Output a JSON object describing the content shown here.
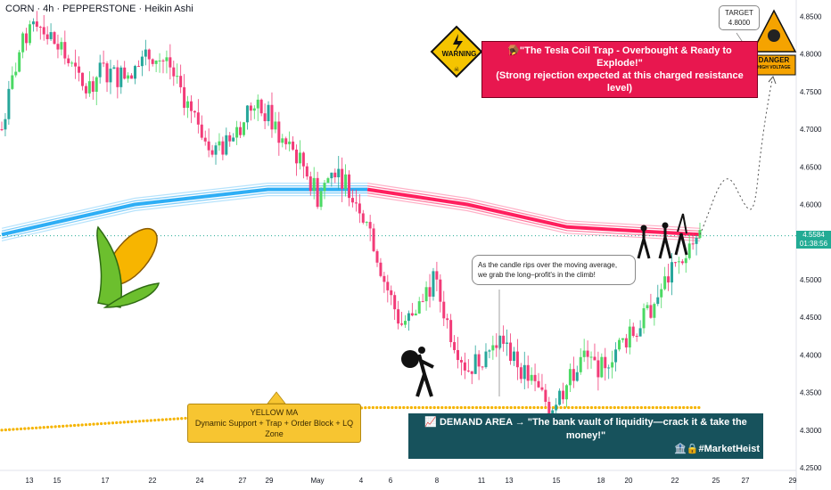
{
  "header": {
    "title": "CORN · 4h · PEPPERSTONE · Heikin Ashi"
  },
  "colors": {
    "bull": "#26a69a",
    "bull_light": "#4cd964",
    "bear": "#f23b78",
    "ma_blue": "#2eaef5",
    "ma_pink": "#ff1f5e",
    "yellow_ma": "#f5b400",
    "price_line": "#22ab94",
    "demand_bg": "#17525c",
    "resistance_bg": "#e8174f"
  },
  "price_axis": {
    "labels": [
      "4.8500",
      "4.8000",
      "4.7500",
      "4.7000",
      "4.6500",
      "4.6000",
      "4.5500",
      "4.5000",
      "4.4500",
      "4.4000",
      "4.3500",
      "4.3000",
      "4.2500"
    ]
  },
  "current_price": {
    "value": "4.5584",
    "countdown": "01:38:56"
  },
  "date_axis": {
    "labels": [
      "13",
      "15",
      "17",
      "22",
      "24",
      "27",
      "29",
      "May",
      "4",
      "6",
      "8",
      "11",
      "13",
      "15",
      "18",
      "20",
      "22",
      "25",
      "27",
      "29"
    ]
  },
  "annotations": {
    "resistance": {
      "line1": "🪤\"The Tesla Coil Trap - Overbought & Ready to Explode!\"",
      "line2": "(Strong rejection expected at this charged resistance level)"
    },
    "demand": {
      "line1": "📈 DEMAND AREA → \"The bank vault of liquidity—crack it & take the money!\"",
      "line2": "🏦🔒#MarketHeist"
    },
    "yellow_ma": {
      "line1": "YELLOW MA",
      "line2": "Dynamic Support + Trap + Order Block + LQ Zone"
    },
    "candle_note": {
      "line1": "As the candle rips over the moving average,",
      "line2": "we grab the long–profit's in the climb!"
    },
    "target": {
      "line1": "TARGET",
      "line2": "4.8000"
    },
    "warning_sign": "WARNING",
    "danger_sign": {
      "line1": "DANGER",
      "line2": "HIGH VOLTAGE"
    }
  },
  "icons": [
    "corn-icon",
    "thief-with-bag-icon",
    "robbers-icon",
    "warning-sign-icon",
    "danger-sign-icon"
  ],
  "chart_data": {
    "type": "candlestick",
    "title": "CORN · 4h · PEPPERSTONE · Heikin Ashi",
    "ylim": [
      4.25,
      4.86
    ],
    "x_categories": [
      "13",
      "15",
      "17",
      "22",
      "24",
      "27",
      "29",
      "May",
      "4",
      "6",
      "8",
      "11",
      "13",
      "15",
      "18",
      "20",
      "22",
      "25",
      "27",
      "29"
    ],
    "current_price": 4.5584,
    "target": 4.8,
    "close_path": [
      [
        0,
        4.7
      ],
      [
        1,
        4.8
      ],
      [
        2,
        4.85
      ],
      [
        3,
        4.82
      ],
      [
        4,
        4.79
      ],
      [
        5,
        4.75
      ],
      [
        6,
        4.78
      ],
      [
        7,
        4.77
      ],
      [
        8,
        4.78
      ],
      [
        9,
        4.8
      ],
      [
        10,
        4.79
      ],
      [
        11,
        4.74
      ],
      [
        12,
        4.7
      ],
      [
        13,
        4.67
      ],
      [
        14,
        4.69
      ],
      [
        15,
        4.73
      ],
      [
        16,
        4.72
      ],
      [
        17,
        4.68
      ],
      [
        18,
        4.66
      ],
      [
        19,
        4.61
      ],
      [
        20,
        4.65
      ],
      [
        21,
        4.62
      ],
      [
        22,
        4.58
      ],
      [
        23,
        4.5
      ],
      [
        24,
        4.44
      ],
      [
        25,
        4.46
      ],
      [
        26,
        4.5
      ],
      [
        27,
        4.43
      ],
      [
        28,
        4.38
      ],
      [
        29,
        4.4
      ],
      [
        30,
        4.42
      ],
      [
        31,
        4.39
      ],
      [
        32,
        4.36
      ],
      [
        33,
        4.33
      ],
      [
        34,
        4.36
      ],
      [
        35,
        4.4
      ],
      [
        36,
        4.38
      ],
      [
        37,
        4.41
      ],
      [
        38,
        4.43
      ],
      [
        39,
        4.46
      ],
      [
        40,
        4.5
      ],
      [
        41,
        4.53
      ],
      [
        42,
        4.56
      ]
    ],
    "moving_averages": [
      {
        "name": "blue MA",
        "values": [
          [
            0,
            4.56
          ],
          [
            8,
            4.6
          ],
          [
            16,
            4.62
          ],
          [
            22,
            4.62
          ]
        ]
      },
      {
        "name": "pink MA",
        "values": [
          [
            22,
            4.62
          ],
          [
            28,
            4.6
          ],
          [
            34,
            4.57
          ],
          [
            42,
            4.56
          ]
        ]
      },
      {
        "name": "YELLOW MA",
        "values": [
          [
            0,
            4.3
          ],
          [
            14,
            4.32
          ],
          [
            22,
            4.33
          ],
          [
            42,
            4.33
          ]
        ]
      }
    ],
    "projection": [
      [
        42,
        4.56
      ],
      [
        43,
        4.6
      ],
      [
        44,
        4.59
      ],
      [
        45,
        4.65
      ],
      [
        46,
        4.76
      ]
    ]
  }
}
